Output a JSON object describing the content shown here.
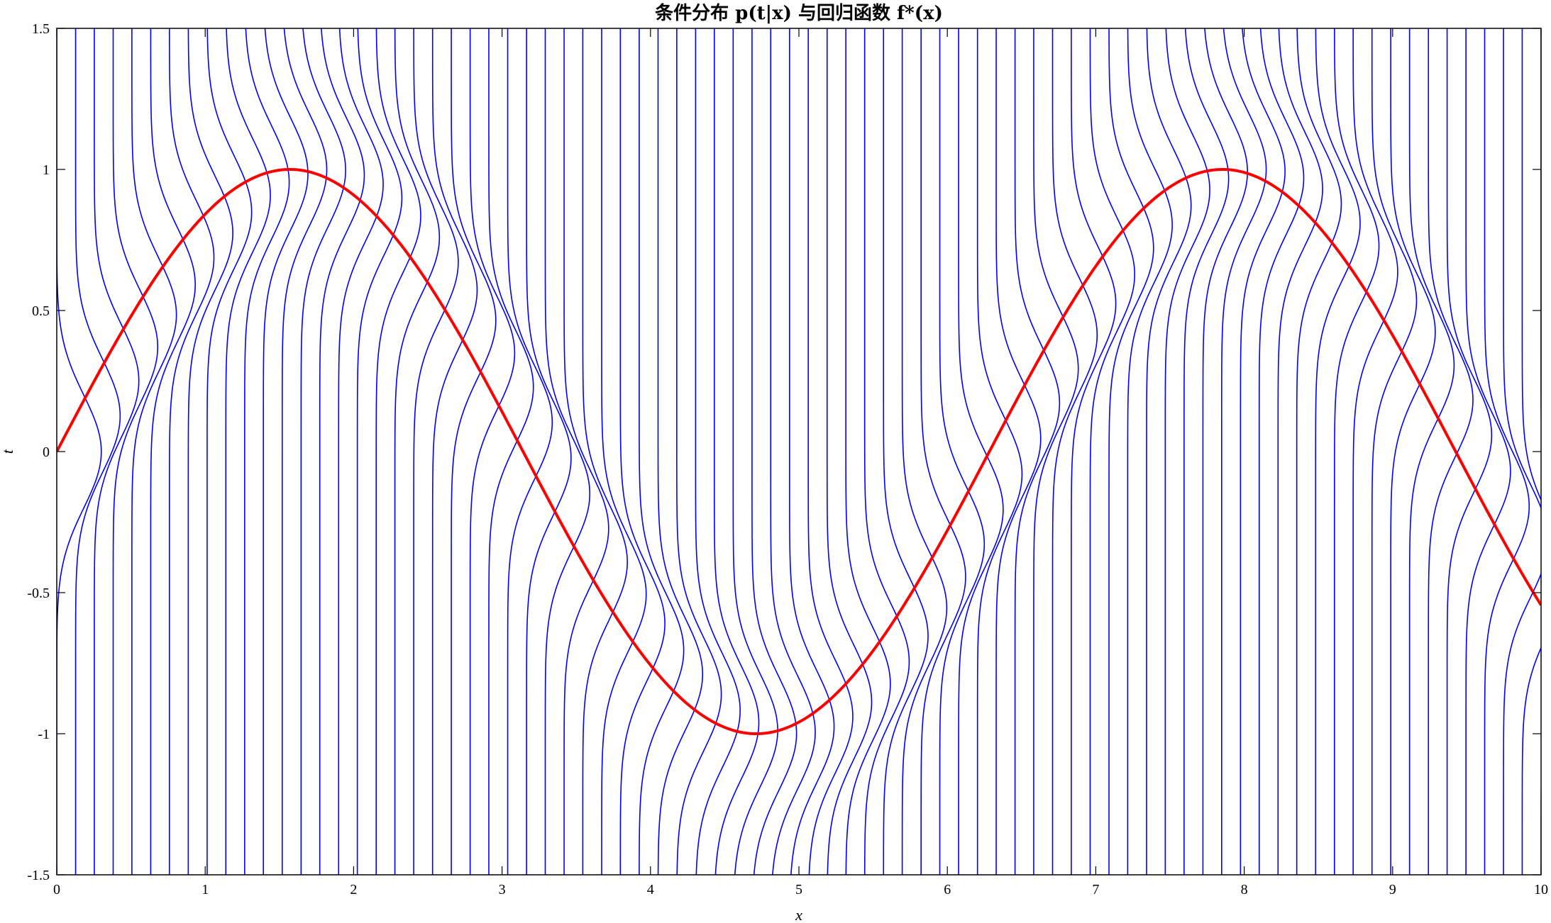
{
  "chart_data": {
    "type": "line",
    "title": "条件分布 p(t|x) 与回归函数 f*(x)",
    "xlabel": "x",
    "ylabel": "t",
    "xlim": [
      0,
      10
    ],
    "ylim": [
      -1.5,
      1.5
    ],
    "x_ticks": [
      "0",
      "1",
      "2",
      "3",
      "4",
      "5",
      "6",
      "7",
      "8",
      "9",
      "10"
    ],
    "y_ticks": [
      "-1.5",
      "-1",
      "-0.5",
      "0",
      "0.5",
      "1",
      "1.5"
    ],
    "grid": false,
    "legend": "none",
    "series": [
      {
        "role": "regression_function",
        "color": "#ff0000",
        "x": [
          0,
          0.5,
          1,
          1.5,
          1.5708,
          2,
          2.5,
          3,
          3.5,
          4,
          4.5,
          4.7124,
          5,
          5.5,
          6,
          6.5,
          7,
          7.5,
          7.854,
          8,
          8.5,
          9,
          9.5,
          10
        ],
        "y": [
          0,
          0.479,
          0.841,
          0.997,
          1.0,
          0.909,
          0.598,
          0.141,
          -0.351,
          -0.757,
          -0.978,
          -1.0,
          -0.959,
          -0.706,
          -0.279,
          0.215,
          0.657,
          0.938,
          1.0,
          0.989,
          0.798,
          0.412,
          -0.075,
          -0.544
        ]
      },
      {
        "role": "conditional_distribution_contours",
        "color": "#0000ff",
        "x_baselines": [
          0,
          0.127,
          0.253,
          0.38,
          0.506,
          0.633,
          0.759,
          0.886,
          1.013,
          1.139,
          1.266,
          1.392,
          1.519,
          1.646,
          1.772,
          1.899,
          2.025,
          2.152,
          2.278,
          2.405,
          2.532,
          2.658,
          2.785,
          2.911,
          3.038,
          3.165,
          3.291,
          3.418,
          3.544,
          3.671,
          3.797,
          3.924,
          4.051,
          4.177,
          4.304,
          4.43,
          4.557,
          4.684,
          4.81,
          4.937,
          5.063,
          5.19,
          5.316,
          5.443,
          5.57,
          5.696,
          5.823,
          5.949,
          6.076,
          6.203,
          6.329,
          6.456,
          6.582,
          6.709,
          6.835,
          6.962,
          7.089,
          7.215,
          7.342,
          7.468,
          7.595,
          7.722,
          7.848,
          7.975,
          8.101,
          8.228,
          8.354,
          8.481,
          8.608,
          8.734,
          8.861,
          8.987,
          9.114,
          9.241,
          9.367,
          9.494,
          9.62,
          9.747,
          9.873,
          10
        ],
        "center": "sin(x)",
        "sigma": 0.2,
        "scale": 0.3
      }
    ]
  }
}
